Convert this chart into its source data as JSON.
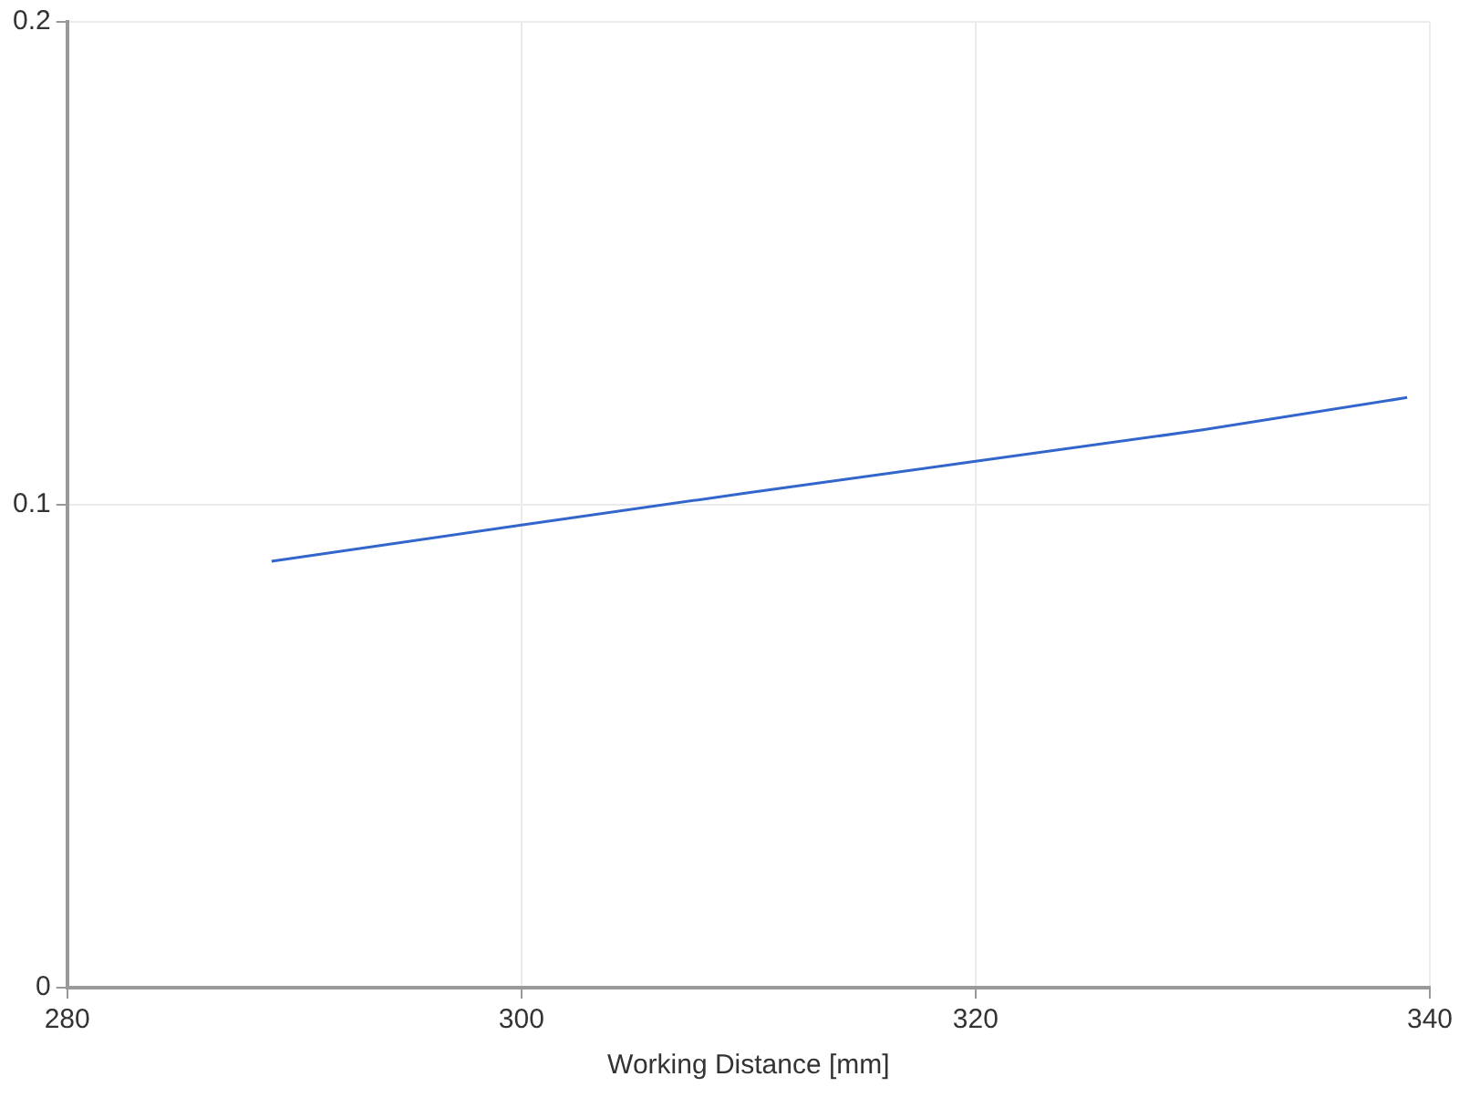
{
  "chart_data": {
    "type": "line",
    "xlabel": "Working Distance [mm]",
    "x": [
      289,
      300,
      310,
      320,
      330,
      339
    ],
    "series": [
      {
        "color": "#3366cc",
        "values": [
          0.0883,
          0.0958,
          0.1025,
          0.109,
          0.1155,
          0.1222
        ]
      }
    ],
    "xlim": [
      280,
      340
    ],
    "xticks": [
      280,
      300,
      320,
      340
    ],
    "ylim": [
      0,
      0.2
    ],
    "yticks": [
      0,
      0.1,
      0.2
    ],
    "grid": true,
    "legend": false,
    "marker": "none",
    "line_style": "solid"
  }
}
